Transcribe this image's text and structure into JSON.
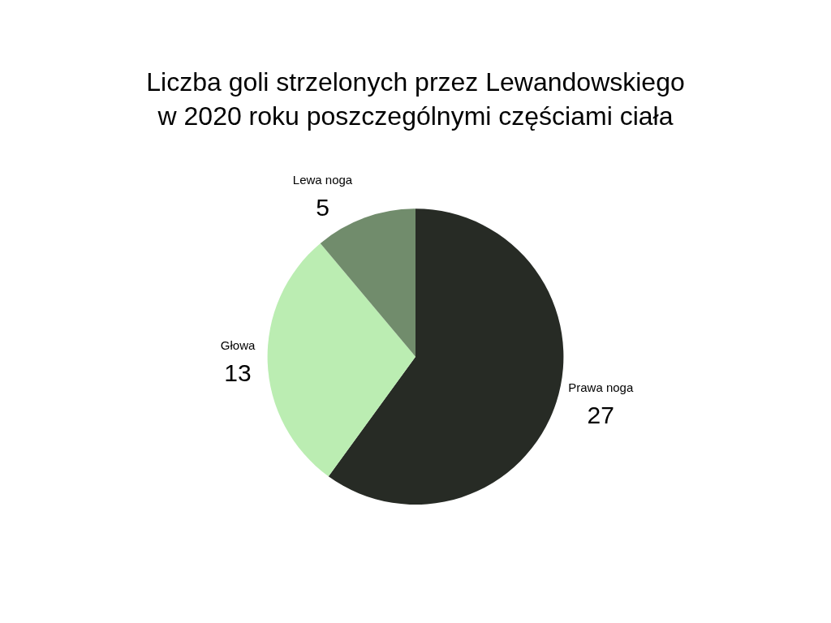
{
  "chart_data": {
    "type": "pie",
    "title": "Liczba goli strzelonych przez Lewandowskiego\nw 2020 roku poszczególnymi częściami ciała",
    "categories": [
      "Prawa noga",
      "Głowa",
      "Lewa noga"
    ],
    "values": [
      27,
      13,
      5
    ],
    "colors": [
      "#272b25",
      "#bbedb2",
      "#718c6c"
    ],
    "data_labels": true
  }
}
